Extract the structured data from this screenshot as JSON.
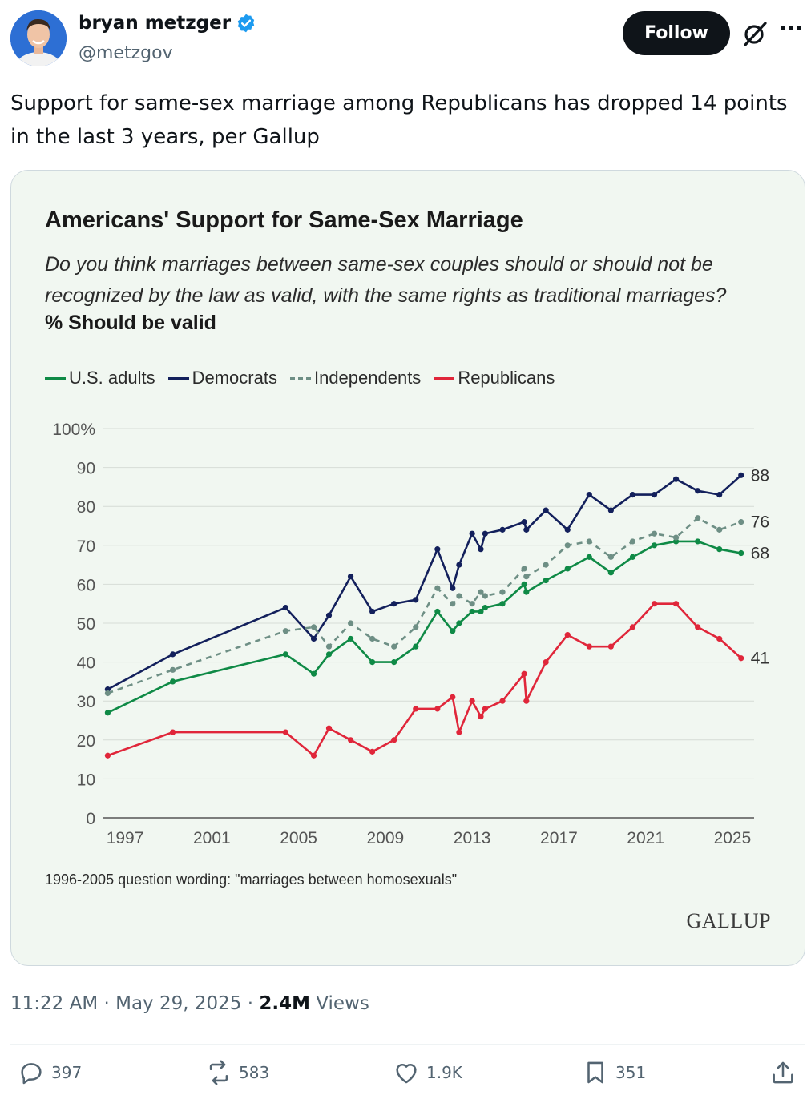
{
  "author": {
    "name": "bryan metzger",
    "handle": "@metzgov"
  },
  "header": {
    "follow_label": "Follow",
    "more_label": "···"
  },
  "tweet": {
    "text": "Support for same-sex marriage among Republicans has dropped 14 points in the last 3 years, per Gallup"
  },
  "chart_header": {
    "title": "Americans' Support for Same-Sex Marriage",
    "question": "Do you think marriages between same-sex couples should or should not be recognized by the law as valid, with the same rights as traditional marriages?",
    "measure": "% Should be valid",
    "note": "1996-2005 question wording: \"marriages between homosexuals\"",
    "logo_text": "GALLUP"
  },
  "colors": {
    "us_adults": "#0f8a46",
    "democrats": "#13205c",
    "independents": "#6e8f85",
    "republicans": "#e0263a"
  },
  "chart_data": {
    "type": "line",
    "title": "Americans' Support for Same-Sex Marriage",
    "xlabel": "",
    "ylabel": "",
    "xlim": [
      1996,
      2026
    ],
    "ylim": [
      0,
      100
    ],
    "x_ticks": [
      "1997",
      "2001",
      "2005",
      "2009",
      "2013",
      "2017",
      "2021",
      "2025"
    ],
    "y_ticks": [
      "0",
      "10",
      "20",
      "30",
      "40",
      "50",
      "60",
      "70",
      "80",
      "90",
      "100%"
    ],
    "grid": true,
    "legend_position": "top-left",
    "series": [
      {
        "name": "U.S. adults",
        "style": "solid",
        "end_label": "68",
        "points": [
          [
            1996.2,
            27
          ],
          [
            1999.2,
            35
          ],
          [
            2004.4,
            42
          ],
          [
            2005.7,
            37
          ],
          [
            2006.4,
            42
          ],
          [
            2007.4,
            46
          ],
          [
            2008.4,
            40
          ],
          [
            2009.4,
            40
          ],
          [
            2010.4,
            44
          ],
          [
            2011.4,
            53
          ],
          [
            2012.1,
            48
          ],
          [
            2012.4,
            50
          ],
          [
            2013.0,
            53
          ],
          [
            2013.4,
            53
          ],
          [
            2013.6,
            54
          ],
          [
            2014.4,
            55
          ],
          [
            2015.4,
            60
          ],
          [
            2015.5,
            58
          ],
          [
            2016.4,
            61
          ],
          [
            2017.4,
            64
          ],
          [
            2018.4,
            67
          ],
          [
            2019.4,
            63
          ],
          [
            2020.4,
            67
          ],
          [
            2021.4,
            70
          ],
          [
            2022.4,
            71
          ],
          [
            2023.4,
            71
          ],
          [
            2024.4,
            69
          ],
          [
            2025.4,
            68
          ]
        ]
      },
      {
        "name": "Democrats",
        "style": "solid",
        "end_label": "88",
        "points": [
          [
            1996.2,
            33
          ],
          [
            1999.2,
            42
          ],
          [
            2004.4,
            54
          ],
          [
            2005.7,
            46
          ],
          [
            2006.4,
            52
          ],
          [
            2007.4,
            62
          ],
          [
            2008.4,
            53
          ],
          [
            2009.4,
            55
          ],
          [
            2010.4,
            56
          ],
          [
            2011.4,
            69
          ],
          [
            2012.1,
            59
          ],
          [
            2012.4,
            65
          ],
          [
            2013.0,
            73
          ],
          [
            2013.4,
            69
          ],
          [
            2013.6,
            73
          ],
          [
            2014.4,
            74
          ],
          [
            2015.4,
            76
          ],
          [
            2015.5,
            74
          ],
          [
            2016.4,
            79
          ],
          [
            2017.4,
            74
          ],
          [
            2018.4,
            83
          ],
          [
            2019.4,
            79
          ],
          [
            2020.4,
            83
          ],
          [
            2021.4,
            83
          ],
          [
            2022.4,
            87
          ],
          [
            2023.4,
            84
          ],
          [
            2024.4,
            83
          ],
          [
            2025.4,
            88
          ]
        ]
      },
      {
        "name": "Independents",
        "style": "dashed",
        "end_label": "76",
        "points": [
          [
            1996.2,
            32
          ],
          [
            1999.2,
            38
          ],
          [
            2004.4,
            48
          ],
          [
            2005.7,
            49
          ],
          [
            2006.4,
            44
          ],
          [
            2007.4,
            50
          ],
          [
            2008.4,
            46
          ],
          [
            2009.4,
            44
          ],
          [
            2010.4,
            49
          ],
          [
            2011.4,
            59
          ],
          [
            2012.1,
            55
          ],
          [
            2012.4,
            57
          ],
          [
            2013.0,
            55
          ],
          [
            2013.4,
            58
          ],
          [
            2013.6,
            57
          ],
          [
            2014.4,
            58
          ],
          [
            2015.4,
            64
          ],
          [
            2015.5,
            62
          ],
          [
            2016.4,
            65
          ],
          [
            2017.4,
            70
          ],
          [
            2018.4,
            71
          ],
          [
            2019.4,
            67
          ],
          [
            2020.4,
            71
          ],
          [
            2021.4,
            73
          ],
          [
            2022.4,
            72
          ],
          [
            2023.4,
            77
          ],
          [
            2024.4,
            74
          ],
          [
            2025.4,
            76
          ]
        ]
      },
      {
        "name": "Republicans",
        "style": "solid",
        "end_label": "41",
        "points": [
          [
            1996.2,
            16
          ],
          [
            1999.2,
            22
          ],
          [
            2004.4,
            22
          ],
          [
            2005.7,
            16
          ],
          [
            2006.4,
            23
          ],
          [
            2007.4,
            20
          ],
          [
            2008.4,
            17
          ],
          [
            2009.4,
            20
          ],
          [
            2010.4,
            28
          ],
          [
            2011.4,
            28
          ],
          [
            2012.1,
            31
          ],
          [
            2012.4,
            22
          ],
          [
            2013.0,
            30
          ],
          [
            2013.4,
            26
          ],
          [
            2013.6,
            28
          ],
          [
            2014.4,
            30
          ],
          [
            2015.4,
            37
          ],
          [
            2015.5,
            30
          ],
          [
            2016.4,
            40
          ],
          [
            2017.4,
            47
          ],
          [
            2018.4,
            44
          ],
          [
            2019.4,
            44
          ],
          [
            2020.4,
            49
          ],
          [
            2021.4,
            55
          ],
          [
            2022.4,
            55
          ],
          [
            2023.4,
            49
          ],
          [
            2024.4,
            46
          ],
          [
            2025.4,
            41
          ]
        ]
      }
    ]
  },
  "meta": {
    "time": "11:22 AM",
    "separator": "·",
    "date": "May 29, 2025",
    "views_count": "2.4M",
    "views_label": "Views"
  },
  "actions": {
    "replies": "397",
    "reposts": "583",
    "likes": "1.9K",
    "bookmarks": "351"
  }
}
